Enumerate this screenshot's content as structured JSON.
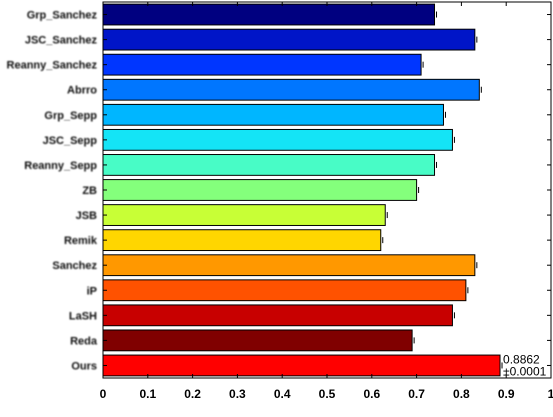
{
  "chart_data": {
    "type": "bar",
    "orientation": "horizontal",
    "title": "",
    "xlabel": "",
    "ylabel": "",
    "xlim": [
      0,
      1
    ],
    "xticks": [
      0,
      0.1,
      0.2,
      0.3,
      0.4,
      0.5,
      0.6,
      0.7,
      0.8,
      0.9,
      1
    ],
    "xtick_labels": [
      "0",
      "0.1",
      "0.2",
      "0.3",
      "0.4",
      "0.5",
      "0.6",
      "0.7",
      "0.8",
      "0.9",
      "1"
    ],
    "grid": false,
    "categories": [
      "Grp_Sanchez",
      "JSC_Sanchez",
      "Reanny_Sanchez",
      "Abrro",
      "Grp_Sepp",
      "JSC_Sepp",
      "Reanny_Sepp",
      "ZB",
      "JSB",
      "Remik",
      "Sanchez",
      "iP",
      "LaSH",
      "Reda",
      "Ours"
    ],
    "values": [
      0.74,
      0.83,
      0.71,
      0.84,
      0.76,
      0.78,
      0.74,
      0.7,
      0.63,
      0.62,
      0.83,
      0.81,
      0.78,
      0.69,
      0.8862
    ],
    "colors": [
      "#000080",
      "#0015c8",
      "#0036ff",
      "#0076ff",
      "#00b6ff",
      "#14e4f6",
      "#48fcc6",
      "#84ff7c",
      "#c8ff36",
      "#ffd600",
      "#ff9800",
      "#ff5200",
      "#c80000",
      "#800000",
      "#ff0000"
    ],
    "annotations": [
      {
        "category": "Ours",
        "lines": [
          "0.8862",
          "±0.0001"
        ]
      }
    ]
  }
}
